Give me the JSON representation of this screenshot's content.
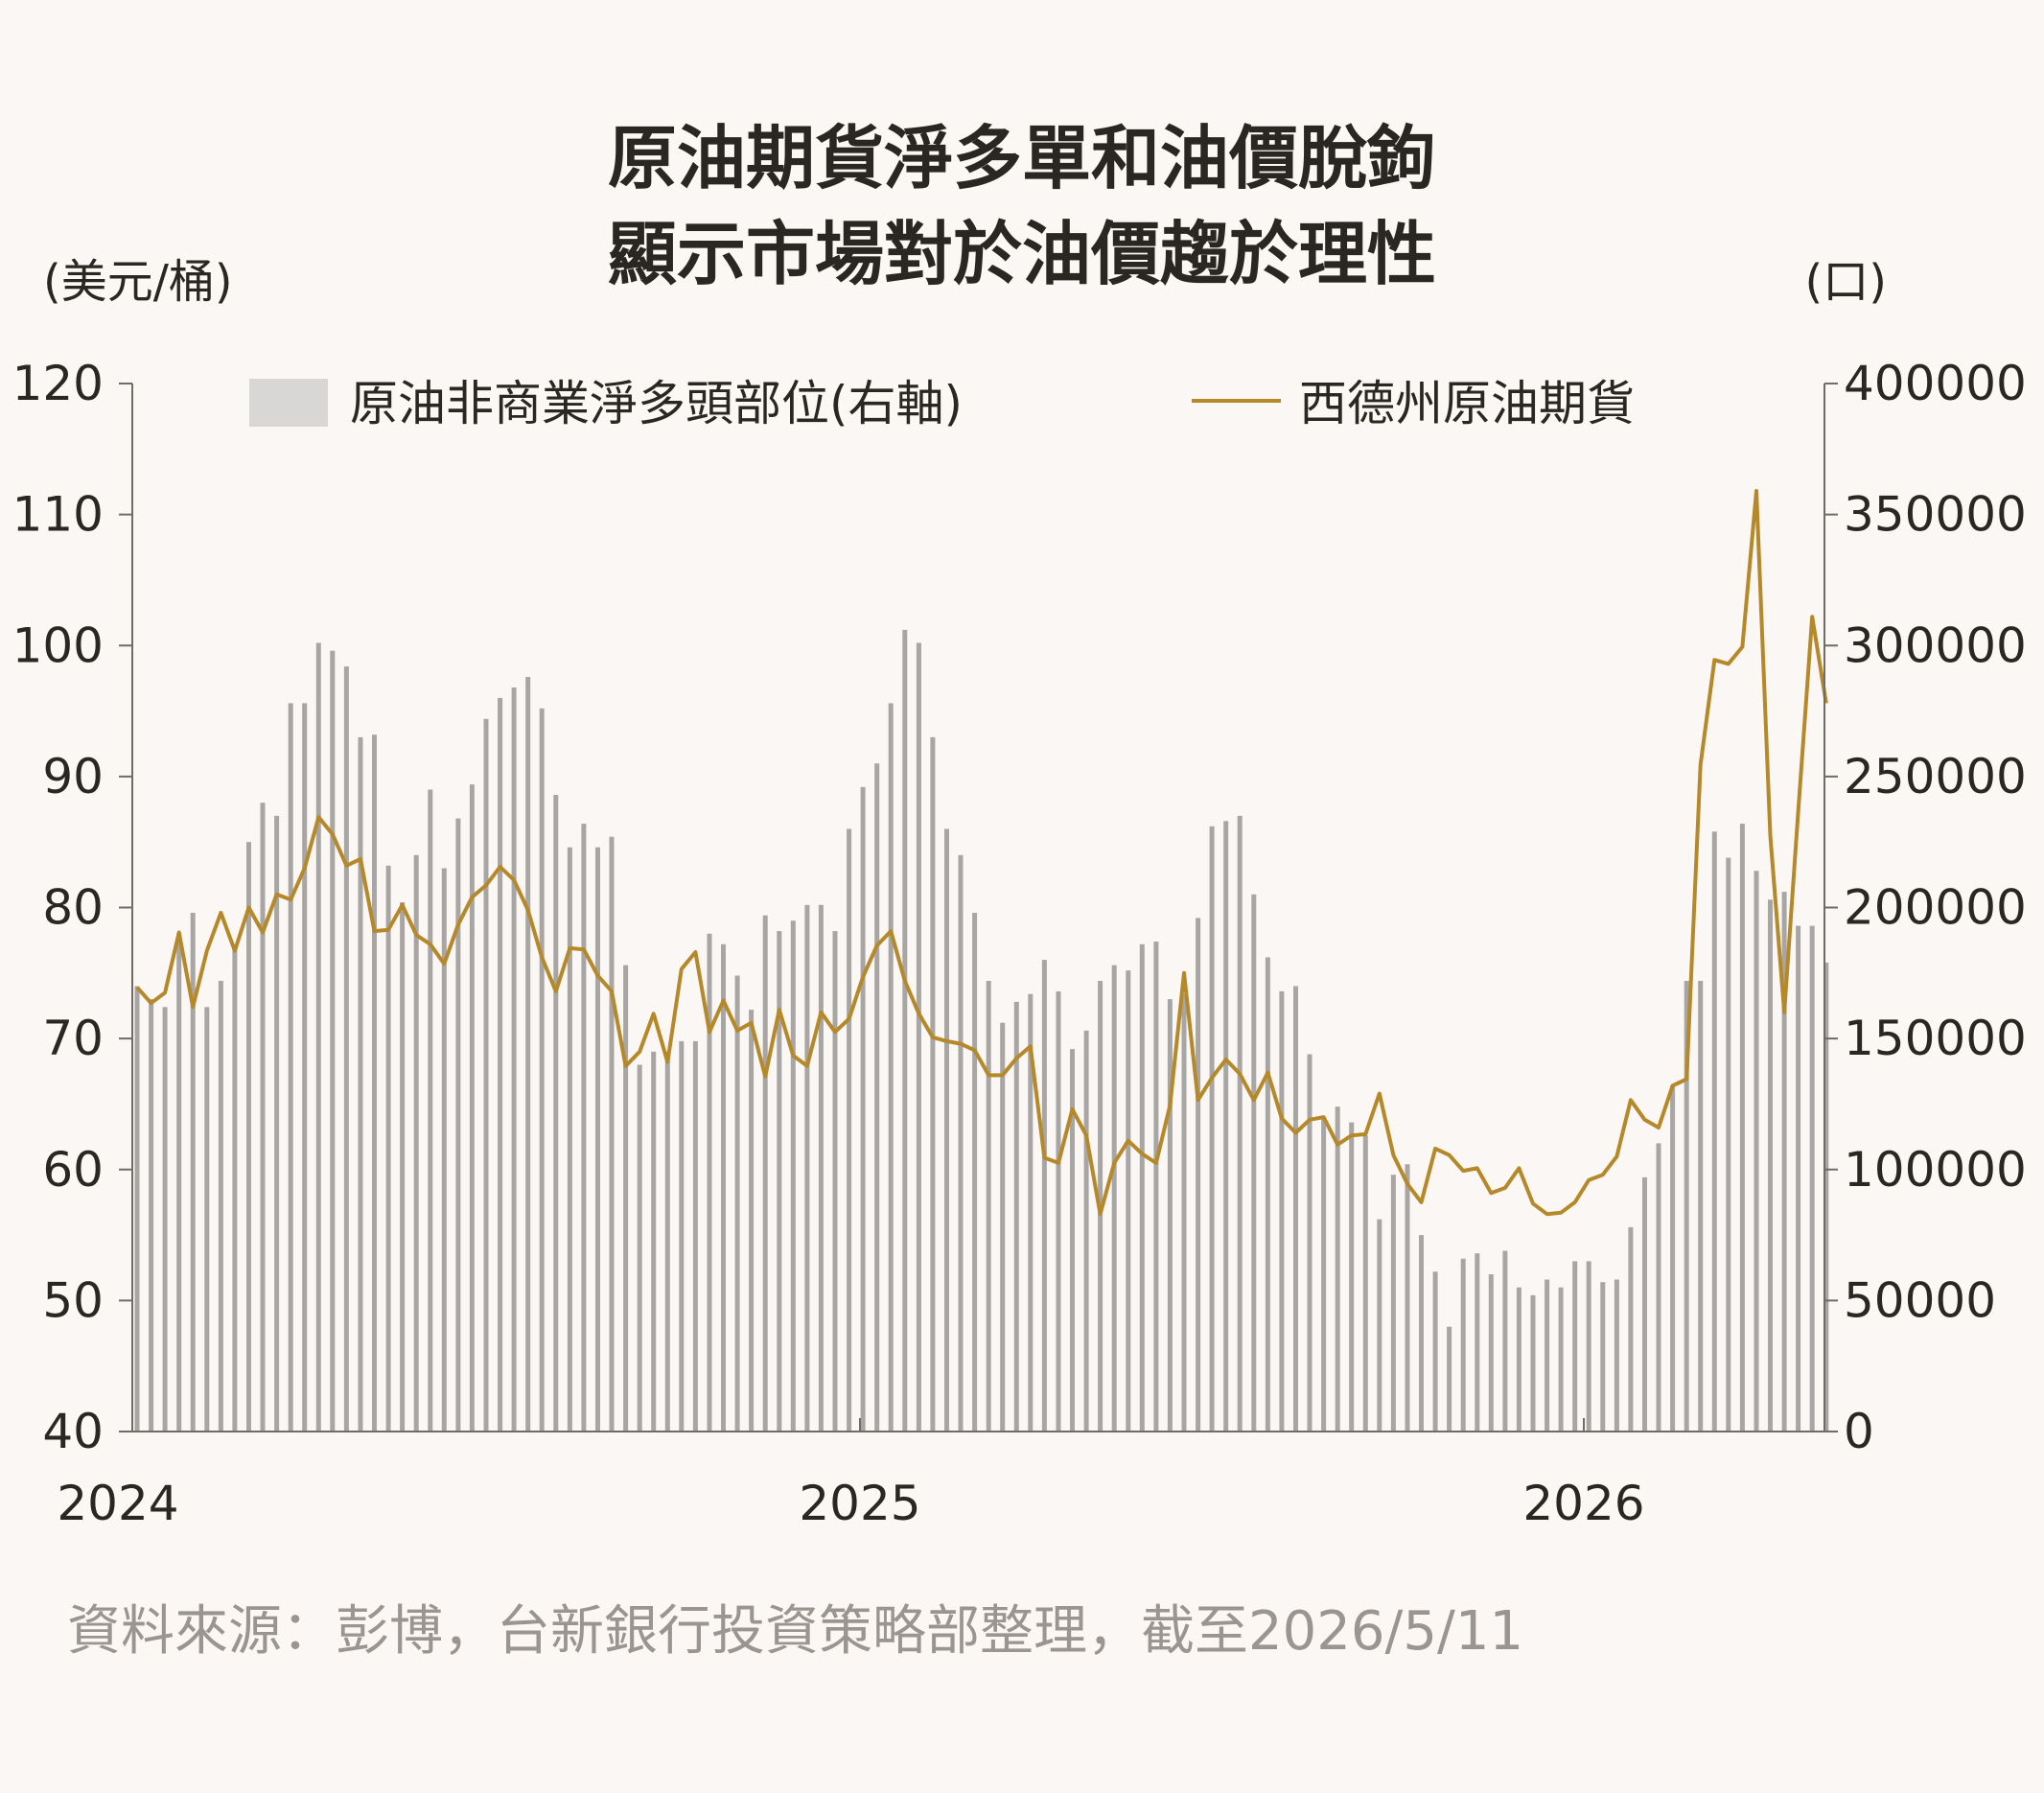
{
  "chart_data": {
    "type": "bar+line",
    "title": [
      "原油期貨淨多單和油價脫鉤",
      "顯示市場對於油價趨於理性"
    ],
    "left_unit": "(美元/桶)",
    "right_unit": "(口)",
    "left_ylim": [
      40,
      120
    ],
    "left_ticks": [
      "120",
      "110",
      "100",
      "90",
      "80",
      "70",
      "60",
      "50",
      "40"
    ],
    "right_ylim": [
      0,
      400000
    ],
    "right_ticks": [
      "400000",
      "350000",
      "300000",
      "250000",
      "200000",
      "150000",
      "100000",
      "50000",
      "0"
    ],
    "x_ticks": [
      "2024",
      "2025",
      "2026"
    ],
    "legend_position": "top",
    "series": [
      {
        "name": "原油非商業淨多頭部位(右軸)",
        "axis": "right",
        "kind": "bar",
        "color": "#a8a6a4",
        "legend_color": "#d9d7d5",
        "values": [
          170000,
          165000,
          162000,
          190000,
          198000,
          162000,
          172000,
          186000,
          225000,
          240000,
          235000,
          278000,
          278000,
          301000,
          298000,
          292000,
          265000,
          266000,
          216000,
          202000,
          220000,
          245000,
          215000,
          234000,
          247000,
          272000,
          280000,
          284000,
          288000,
          276000,
          243000,
          223000,
          232000,
          223000,
          227000,
          178000,
          140000,
          145000,
          145000,
          149000,
          149000,
          190000,
          186000,
          174000,
          161000,
          197000,
          191000,
          195000,
          201000,
          201000,
          191000,
          230000,
          246000,
          255000,
          278000,
          306000,
          301000,
          265000,
          230000,
          220000,
          198000,
          172000,
          156000,
          164000,
          167000,
          180000,
          168000,
          146000,
          153000,
          172000,
          178000,
          176000,
          186000,
          187000,
          165000,
          167000,
          196000,
          231000,
          233000,
          235000,
          205000,
          181000,
          168000,
          170000,
          144000,
          120000,
          124000,
          118000,
          113000,
          81000,
          98000,
          102000,
          75000,
          61000,
          40000,
          66000,
          68000,
          60000,
          69000,
          55000,
          52000,
          58000,
          55000,
          65000,
          65000,
          57000,
          58000,
          78000,
          97000,
          110000,
          132000,
          172000,
          172000,
          229000,
          219000,
          232000,
          214000,
          203000,
          206000,
          193000,
          193000,
          179000
        ]
      },
      {
        "name": "西德州原油期貨",
        "axis": "left",
        "kind": "line",
        "color": "#b5882a",
        "values": [
          73.9,
          72.7,
          73.5,
          78.1,
          72.4,
          76.7,
          79.6,
          76.7,
          80.0,
          78.1,
          81.0,
          80.6,
          83.0,
          86.9,
          85.6,
          83.2,
          83.7,
          78.2,
          78.3,
          80.2,
          77.9,
          77.2,
          75.7,
          78.7,
          80.8,
          81.7,
          83.1,
          82.1,
          79.8,
          76.2,
          73.6,
          76.9,
          76.8,
          74.8,
          73.6,
          67.9,
          69.0,
          71.9,
          68.2,
          75.3,
          76.6,
          70.5,
          72.9,
          70.6,
          71.2,
          67.1,
          72.2,
          68.7,
          67.9,
          72.0,
          70.5,
          71.5,
          74.7,
          77.1,
          78.2,
          74.4,
          71.9,
          70.1,
          69.8,
          69.6,
          69.1,
          67.2,
          67.2,
          68.5,
          69.4,
          60.9,
          60.5,
          64.6,
          62.6,
          56.6,
          60.5,
          62.2,
          61.2,
          60.5,
          64.9,
          75.0,
          65.3,
          67.0,
          68.4,
          67.3,
          65.3,
          67.4,
          63.9,
          62.8,
          63.8,
          64.0,
          61.9,
          62.6,
          62.7,
          65.8,
          61.1,
          58.9,
          57.5,
          61.6,
          61.1,
          59.9,
          60.1,
          58.2,
          58.6,
          60.1,
          57.4,
          56.6,
          56.7,
          57.5,
          59.2,
          59.6,
          61.0,
          65.3,
          63.8,
          63.2,
          66.4,
          66.9,
          90.9,
          98.9,
          98.6,
          99.9,
          111.8,
          85.5,
          72.0,
          87.3,
          102.2,
          95.6
        ]
      }
    ],
    "source": "資料來源：彭博，台新銀行投資策略部整理，截至2026/5/11"
  }
}
